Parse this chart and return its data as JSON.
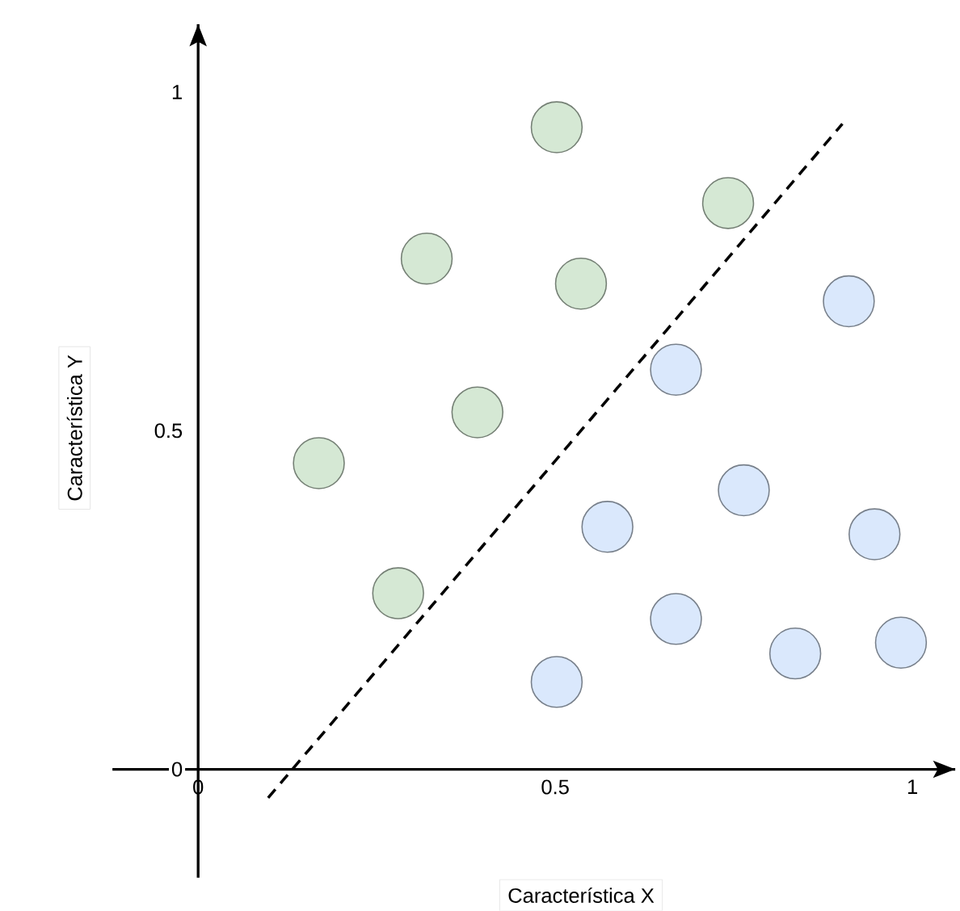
{
  "chart_data": {
    "type": "scatter",
    "xlabel": "Característica X",
    "ylabel": "Característica Y",
    "xlim": [
      -0.12,
      1.06
    ],
    "ylim": [
      -0.16,
      1.1
    ],
    "xticks": [
      0,
      0.5,
      1
    ],
    "yticks": [
      0,
      0.5,
      1
    ],
    "grid": false,
    "marker": "circle",
    "series": [
      {
        "color": "#d5e8d4",
        "x": [
          0.502,
          0.742,
          0.32,
          0.536,
          0.391,
          0.169,
          0.28
        ],
        "values": [
          0.948,
          0.836,
          0.754,
          0.717,
          0.527,
          0.452,
          0.26
        ]
      },
      {
        "color": "#dae8fc",
        "x": [
          0.911,
          0.669,
          0.764,
          0.573,
          0.947,
          0.669,
          0.836,
          0.984,
          0.502
        ],
        "values": [
          0.691,
          0.59,
          0.412,
          0.358,
          0.347,
          0.222,
          0.171,
          0.187,
          0.129
        ]
      },
      {
        "type": "line",
        "color": "#000000",
        "line_style": "dashed",
        "marker": "none",
        "x": [
          0.098,
          0.902
        ],
        "values": [
          -0.042,
          0.953
        ]
      }
    ]
  }
}
